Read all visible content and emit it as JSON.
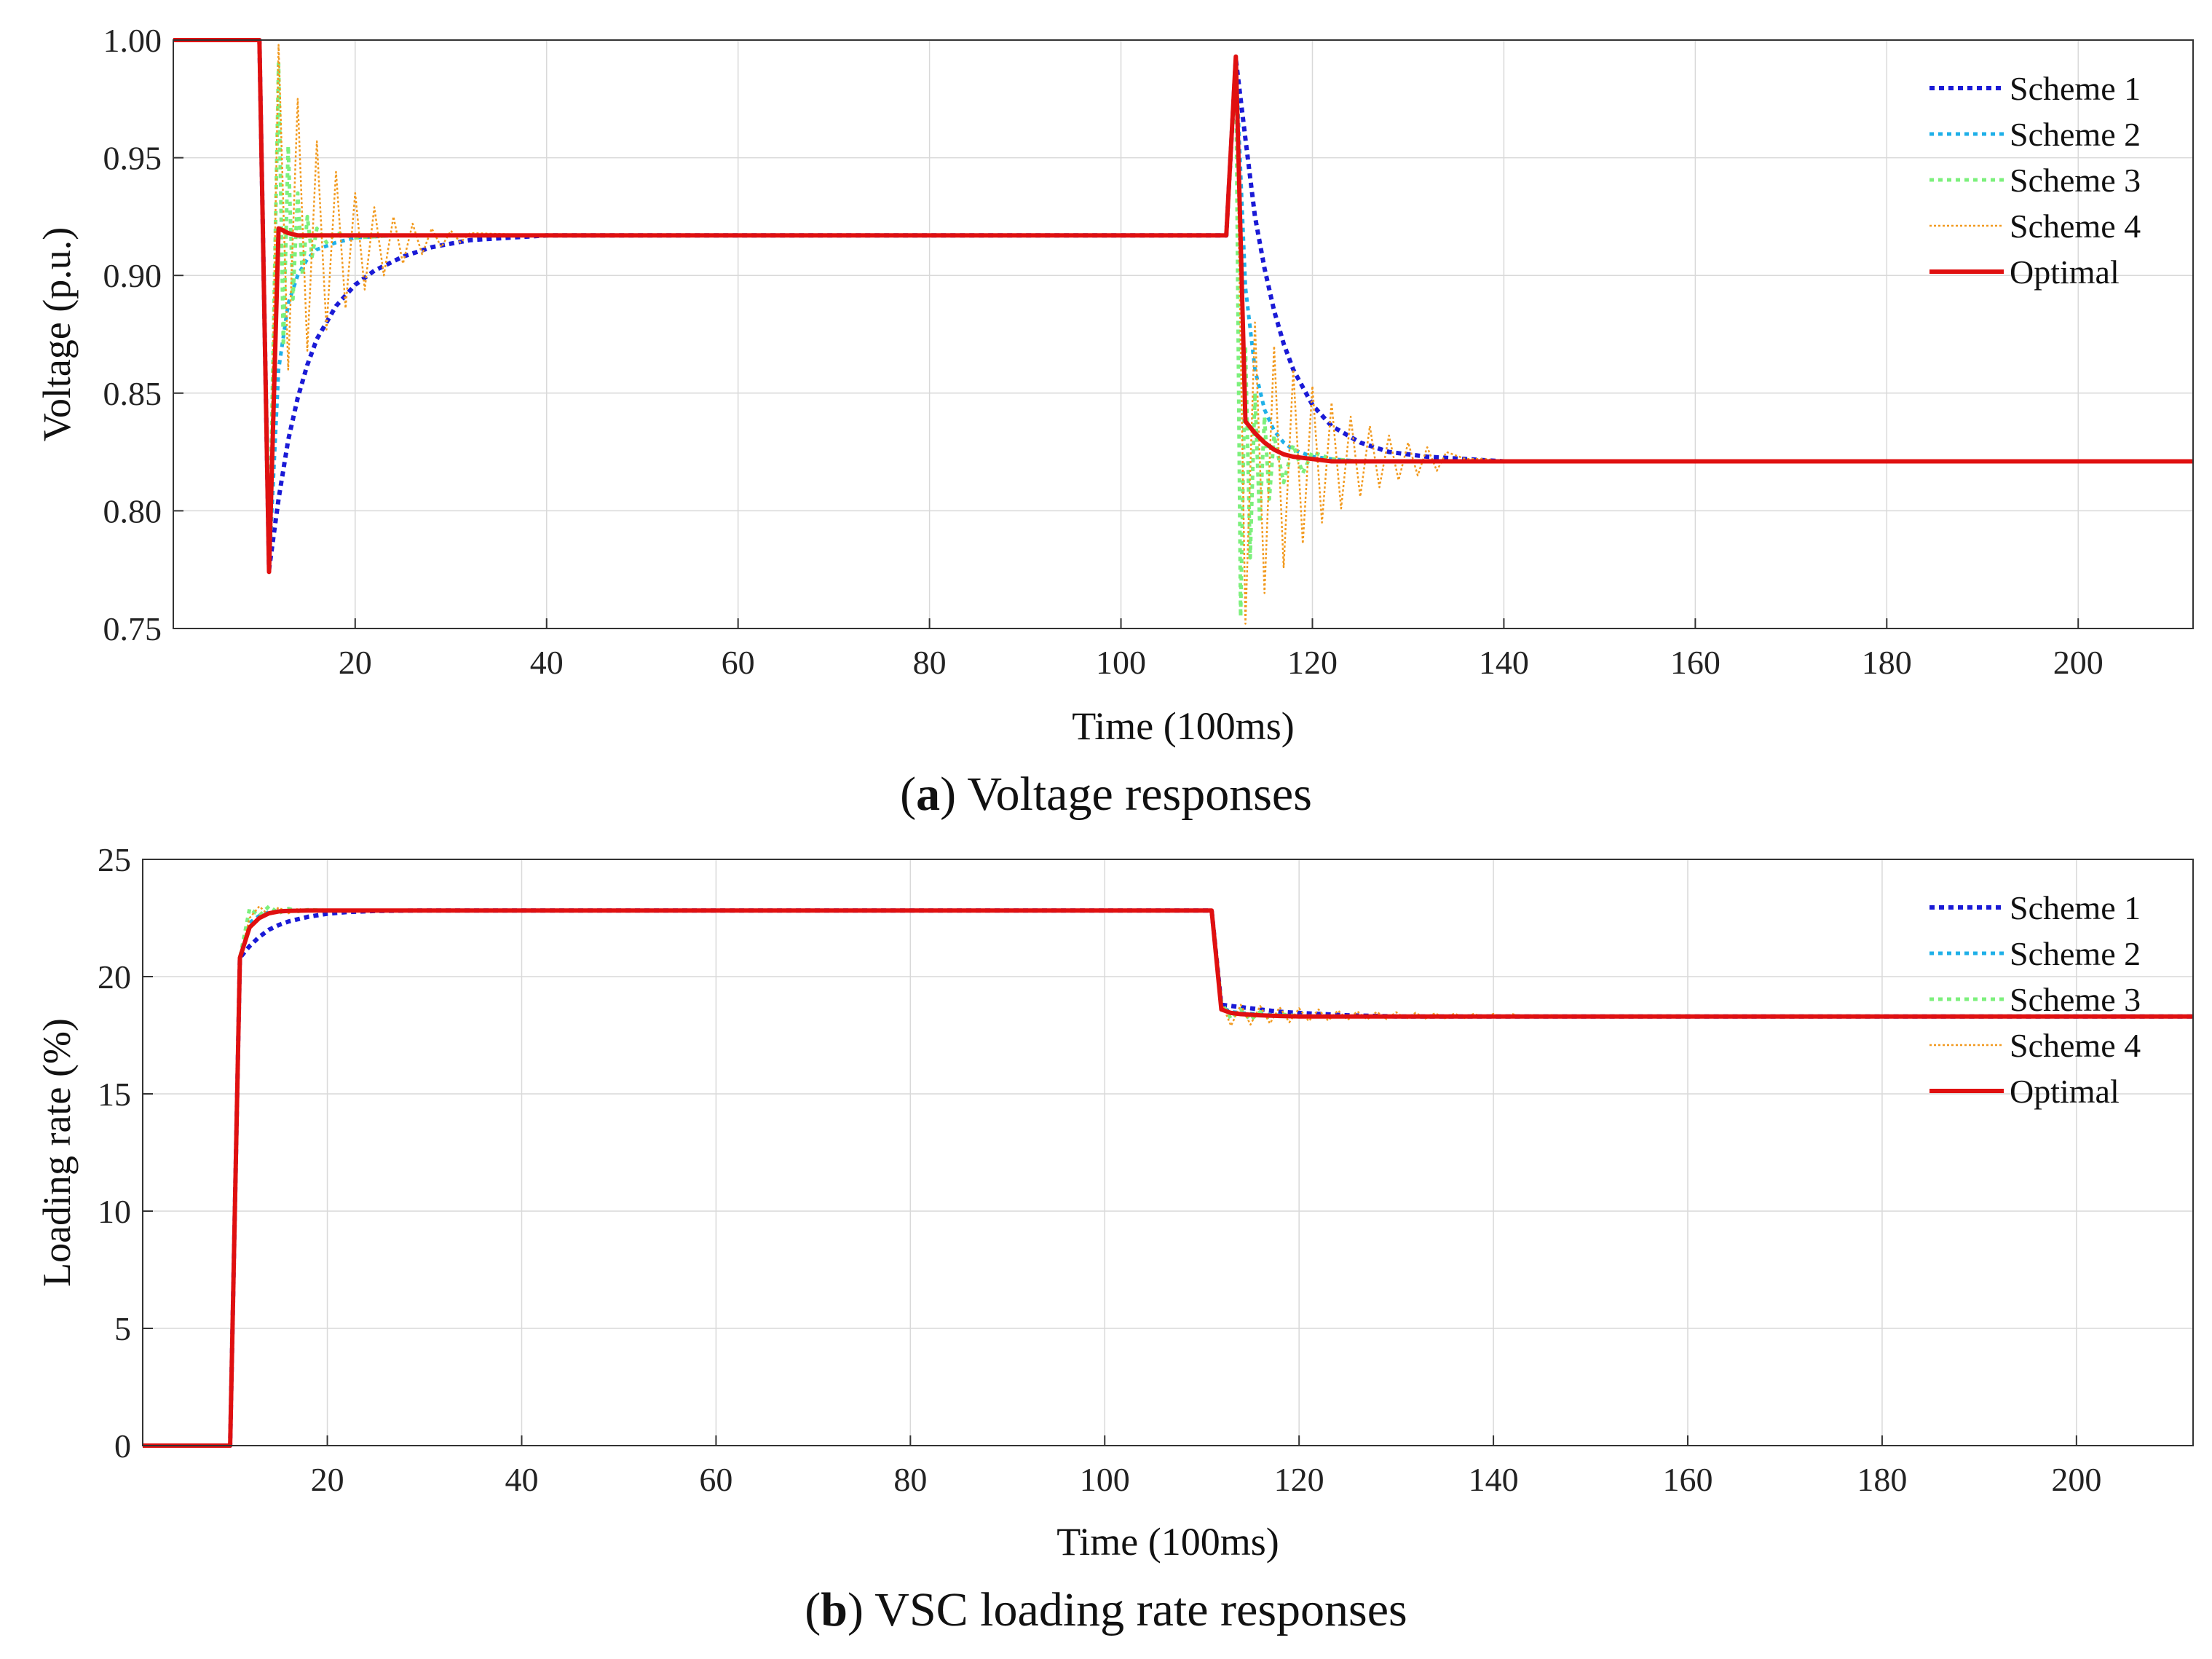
{
  "colors": {
    "scheme1": "#1a1ad6",
    "scheme2": "#1fb0e8",
    "scheme3": "#7cf07c",
    "scheme4": "#f29a1f",
    "optimal": "#e01010",
    "grid": "#d9d9d9",
    "axis": "#333333"
  },
  "chart_data": [
    {
      "type": "line",
      "caption_prefix": "a",
      "caption_text": " Voltage responses",
      "xlabel": "Time (100ms)",
      "ylabel": "Voltage (p.u.)",
      "xlim": [
        1,
        212
      ],
      "ylim": [
        0.75,
        1.0
      ],
      "xticks": [
        20,
        40,
        60,
        80,
        100,
        120,
        140,
        160,
        180,
        200
      ],
      "yticks": [
        0.75,
        0.8,
        0.85,
        0.9,
        0.95,
        1.0
      ],
      "ytick_labels": [
        "0.75",
        "0.80",
        "0.85",
        "0.90",
        "0.95",
        "1.00"
      ],
      "grid": true,
      "legend_position": "top-right",
      "legend": [
        "Scheme 1",
        "Scheme 2",
        "Scheme 3",
        "Scheme 4",
        "Optimal"
      ],
      "series": [
        {
          "name": "Scheme 1",
          "key": "scheme1",
          "style": "dotted-thick",
          "x": [
            1,
            10,
            11,
            12,
            13,
            14,
            15,
            16,
            18,
            20,
            22,
            25,
            28,
            32,
            36,
            40,
            111,
            112,
            113,
            114,
            115,
            116,
            117,
            118,
            120,
            122,
            125,
            128,
            132,
            136,
            140,
            212
          ],
          "y": [
            1.0,
            1.0,
            0.775,
            0.805,
            0.83,
            0.848,
            0.862,
            0.873,
            0.887,
            0.896,
            0.902,
            0.908,
            0.912,
            0.915,
            0.916,
            0.917,
            0.917,
            0.992,
            0.958,
            0.925,
            0.903,
            0.885,
            0.871,
            0.86,
            0.845,
            0.836,
            0.829,
            0.825,
            0.823,
            0.822,
            0.821,
            0.821
          ]
        },
        {
          "name": "Scheme 2",
          "key": "scheme2",
          "style": "dotted-medium",
          "x": [
            1,
            10,
            11,
            12,
            13,
            14,
            15,
            16,
            18,
            20,
            24,
            30,
            40,
            111,
            112,
            113,
            114,
            115,
            116,
            117,
            118,
            120,
            122,
            125,
            130,
            140,
            212
          ],
          "y": [
            1.0,
            1.0,
            0.775,
            0.86,
            0.888,
            0.9,
            0.907,
            0.911,
            0.914,
            0.916,
            0.917,
            0.917,
            0.917,
            0.917,
            0.992,
            0.895,
            0.86,
            0.843,
            0.834,
            0.829,
            0.826,
            0.823,
            0.822,
            0.821,
            0.821,
            0.821,
            0.821
          ]
        },
        {
          "name": "Scheme 3",
          "key": "scheme3",
          "style": "dotted-medium",
          "x": [
            1,
            10,
            11,
            12,
            12.5,
            13,
            13.5,
            14,
            14.5,
            15,
            15.5,
            16,
            17,
            18,
            20,
            24,
            40,
            111,
            112,
            112.5,
            113,
            113.5,
            114,
            114.5,
            115,
            115.5,
            116,
            117,
            118,
            119,
            120,
            122,
            125,
            140,
            212
          ],
          "y": [
            1.0,
            1.0,
            0.775,
            0.99,
            0.87,
            0.955,
            0.89,
            0.935,
            0.9,
            0.925,
            0.908,
            0.92,
            0.914,
            0.918,
            0.916,
            0.917,
            0.917,
            0.917,
            0.992,
            0.755,
            0.87,
            0.78,
            0.85,
            0.795,
            0.84,
            0.805,
            0.832,
            0.812,
            0.828,
            0.816,
            0.825,
            0.822,
            0.821,
            0.821,
            0.821
          ]
        },
        {
          "name": "Scheme 4",
          "key": "scheme4",
          "style": "dotted-thin",
          "x": [
            1,
            10,
            11,
            12,
            13,
            14,
            15,
            16,
            17,
            18,
            19,
            20,
            21,
            22,
            23,
            24,
            25,
            26,
            27,
            28,
            29,
            30,
            31,
            32,
            40,
            111,
            112,
            113,
            114,
            115,
            116,
            117,
            118,
            119,
            120,
            121,
            122,
            123,
            124,
            125,
            126,
            127,
            128,
            129,
            130,
            131,
            132,
            133,
            134,
            136,
            138,
            140,
            212
          ],
          "y": [
            1.0,
            1.0,
            0.775,
            0.998,
            0.86,
            0.975,
            0.868,
            0.957,
            0.877,
            0.944,
            0.886,
            0.935,
            0.894,
            0.929,
            0.9,
            0.925,
            0.905,
            0.922,
            0.909,
            0.92,
            0.912,
            0.919,
            0.914,
            0.918,
            0.917,
            0.917,
            0.99,
            0.752,
            0.88,
            0.765,
            0.87,
            0.776,
            0.86,
            0.786,
            0.853,
            0.795,
            0.846,
            0.801,
            0.84,
            0.806,
            0.836,
            0.81,
            0.832,
            0.813,
            0.829,
            0.815,
            0.827,
            0.817,
            0.825,
            0.822,
            0.822,
            0.821,
            0.821
          ]
        },
        {
          "name": "Optimal",
          "key": "optimal",
          "style": "solid",
          "x": [
            1,
            10,
            11,
            12,
            13,
            14,
            16,
            20,
            30,
            40,
            111,
            112,
            113,
            114,
            115,
            116,
            117,
            118,
            120,
            122,
            125,
            130,
            140,
            212
          ],
          "y": [
            1.0,
            1.0,
            0.774,
            0.92,
            0.918,
            0.917,
            0.917,
            0.917,
            0.917,
            0.917,
            0.917,
            0.993,
            0.838,
            0.833,
            0.829,
            0.826,
            0.824,
            0.823,
            0.822,
            0.821,
            0.821,
            0.821,
            0.821,
            0.821
          ]
        }
      ]
    },
    {
      "type": "line",
      "caption_prefix": "b",
      "caption_text": " VSC loading rate responses",
      "xlabel": "Time (100ms)",
      "ylabel": "Loading rate (%)",
      "xlim": [
        1,
        212
      ],
      "ylim": [
        0,
        25
      ],
      "xticks": [
        20,
        40,
        60,
        80,
        100,
        120,
        140,
        160,
        180,
        200
      ],
      "yticks": [
        0,
        5,
        10,
        15,
        20,
        25
      ],
      "ytick_labels": [
        "0",
        "5",
        "10",
        "15",
        "20",
        "25"
      ],
      "grid": true,
      "legend_position": "top-right",
      "legend": [
        "Scheme 1",
        "Scheme 2",
        "Scheme 3",
        "Scheme 4",
        "Optimal"
      ],
      "series": [
        {
          "name": "Scheme 1",
          "key": "scheme1",
          "style": "dotted-thick",
          "x": [
            1,
            10,
            11,
            12,
            13,
            14,
            15,
            16,
            18,
            20,
            22,
            25,
            30,
            40,
            110,
            111,
            112,
            113,
            114,
            116,
            118,
            120,
            125,
            130,
            212
          ],
          "y": [
            0,
            0,
            20.8,
            21.3,
            21.7,
            22.0,
            22.2,
            22.35,
            22.55,
            22.68,
            22.75,
            22.8,
            22.82,
            22.82,
            22.82,
            22.82,
            18.8,
            18.75,
            18.7,
            18.6,
            18.5,
            18.45,
            18.35,
            18.3,
            18.3
          ]
        },
        {
          "name": "Scheme 2",
          "key": "scheme2",
          "style": "dotted-medium",
          "x": [
            1,
            10,
            11,
            12,
            13,
            14,
            15,
            16,
            18,
            20,
            40,
            110,
            111,
            112,
            113,
            114,
            116,
            118,
            120,
            125,
            212
          ],
          "y": [
            0,
            0,
            20.8,
            22.3,
            22.6,
            22.75,
            22.8,
            22.82,
            22.82,
            22.82,
            22.82,
            22.82,
            22.82,
            18.7,
            18.5,
            18.45,
            18.4,
            18.35,
            18.3,
            18.3,
            18.3
          ]
        },
        {
          "name": "Scheme 3",
          "key": "scheme3",
          "style": "dotted-medium",
          "x": [
            1,
            10,
            11,
            12,
            13,
            14,
            15,
            16,
            17,
            18,
            20,
            40,
            110,
            111,
            112,
            113,
            114,
            115,
            116,
            117,
            118,
            120,
            125,
            212
          ],
          "y": [
            0,
            0,
            20.8,
            22.9,
            22.6,
            23.0,
            22.7,
            22.9,
            22.78,
            22.85,
            22.82,
            22.82,
            22.82,
            22.82,
            18.9,
            18.2,
            18.6,
            18.15,
            18.5,
            18.25,
            18.4,
            18.32,
            18.3,
            18.3
          ]
        },
        {
          "name": "Scheme 4",
          "key": "scheme4",
          "style": "dotted-thin",
          "x": [
            1,
            10,
            11,
            12,
            13,
            14,
            15,
            16,
            17,
            18,
            20,
            40,
            110,
            111,
            112,
            113,
            114,
            115,
            116,
            117,
            118,
            119,
            120,
            121,
            122,
            123,
            124,
            125,
            126,
            127,
            128,
            129,
            130,
            131,
            132,
            133,
            134,
            135,
            136,
            137,
            138,
            139,
            140,
            141,
            142,
            143,
            144,
            145,
            146,
            147,
            148,
            149,
            150,
            152,
            154,
            156,
            158,
            160,
            164,
            168,
            212
          ],
          "y": [
            0,
            0,
            20.8,
            22.5,
            23.0,
            22.6,
            22.95,
            22.7,
            22.9,
            22.78,
            22.82,
            22.82,
            22.82,
            22.82,
            18.9,
            17.9,
            18.8,
            17.95,
            18.75,
            18.0,
            18.7,
            18.05,
            18.65,
            18.1,
            18.6,
            18.12,
            18.56,
            18.15,
            18.52,
            18.17,
            18.5,
            18.19,
            18.48,
            18.2,
            18.46,
            18.21,
            18.44,
            18.22,
            18.43,
            18.23,
            18.42,
            18.24,
            18.41,
            18.25,
            18.4,
            18.26,
            18.38,
            18.27,
            18.36,
            18.28,
            18.35,
            18.28,
            18.33,
            18.3,
            18.32,
            18.3,
            18.31,
            18.3,
            18.3,
            18.3,
            18.3
          ]
        },
        {
          "name": "Optimal",
          "key": "optimal",
          "style": "solid",
          "x": [
            1,
            10,
            11,
            12,
            13,
            14,
            15,
            16,
            18,
            20,
            40,
            110,
            111,
            112,
            113,
            114,
            116,
            118,
            120,
            125,
            212
          ],
          "y": [
            0,
            0,
            20.8,
            22.1,
            22.5,
            22.7,
            22.78,
            22.8,
            22.82,
            22.82,
            22.82,
            22.82,
            22.82,
            18.6,
            18.45,
            18.4,
            18.35,
            18.32,
            18.3,
            18.3,
            18.3
          ]
        }
      ]
    }
  ]
}
